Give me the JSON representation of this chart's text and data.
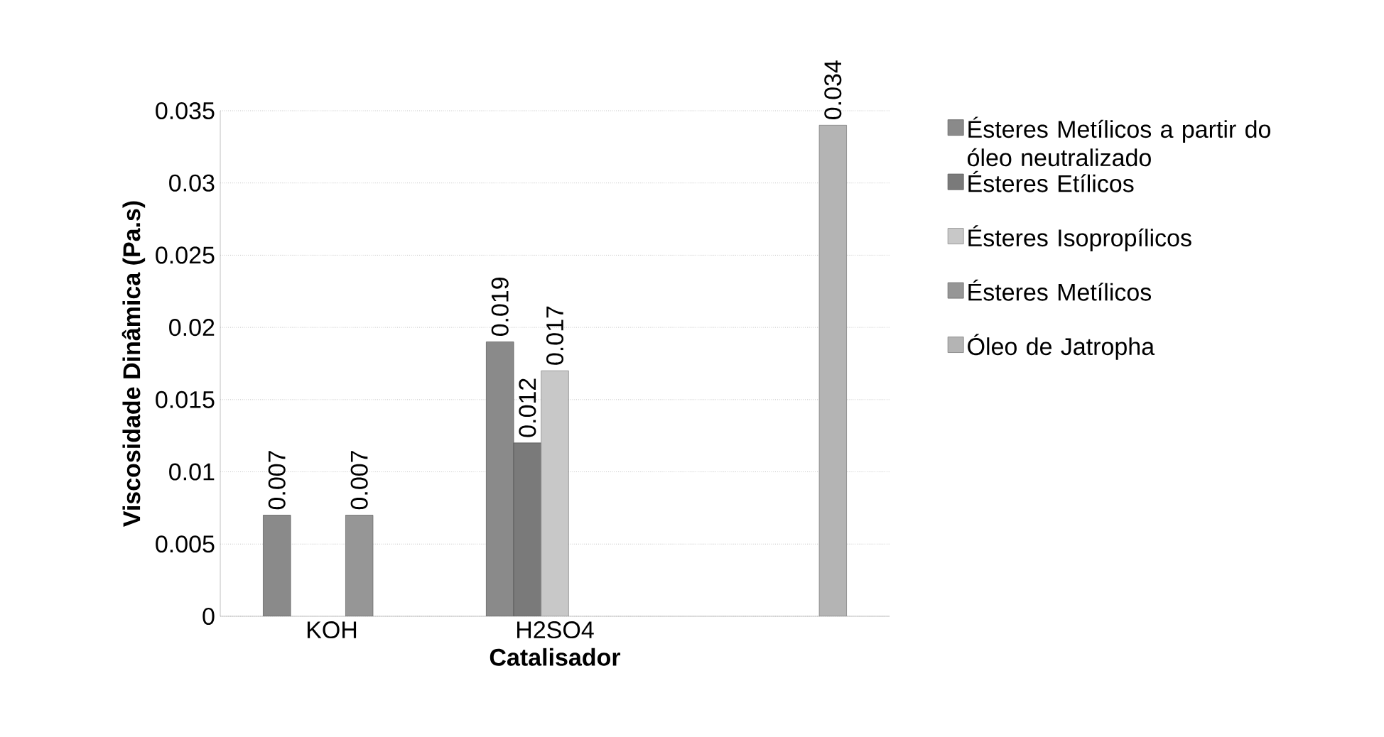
{
  "chart_data": {
    "type": "bar",
    "xlabel": "Catalisador",
    "ylabel": "Viscosidade Dinâmica (Pa.s)",
    "categories": [
      "KOH",
      "H2SO4",
      null
    ],
    "series": [
      {
        "name": "Ésteres Metílicos a partir do óleo neutralizado",
        "color": "#8a8a8a",
        "values": [
          0.007,
          0.019,
          null
        ]
      },
      {
        "name": "Ésteres Etílicos",
        "color": "#7a7a7a",
        "values": [
          null,
          0.012,
          null
        ]
      },
      {
        "name": "Ésteres Isopropílicos",
        "color": "#c8c8c8",
        "values": [
          null,
          0.017,
          null
        ]
      },
      {
        "name": "Ésteres Metílicos",
        "color": "#969696",
        "values": [
          0.007,
          null,
          null
        ]
      },
      {
        "name": "Óleo de Jatropha",
        "color": "#b4b4b4",
        "values": [
          null,
          null,
          0.034
        ]
      }
    ],
    "ylim": [
      0,
      0.035
    ],
    "yticks": [
      0,
      0.005,
      0.01,
      0.015,
      0.02,
      0.025,
      0.03,
      0.035
    ],
    "grid": "y",
    "legend": "right",
    "data_labels": true
  }
}
